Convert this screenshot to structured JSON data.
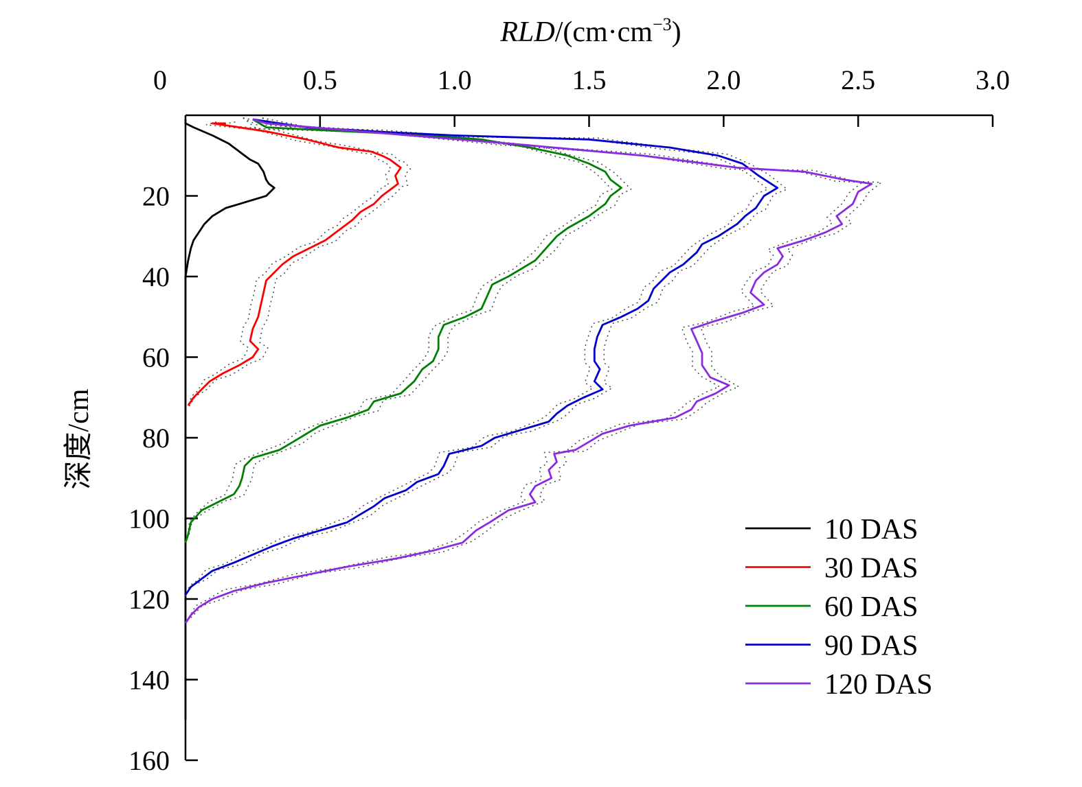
{
  "chart_data": {
    "type": "line",
    "xlabel": "RLD/(cm·cm⁻³)",
    "xlabel_parts": {
      "italic": "RLD",
      "rest": "/(cm·cm",
      "sup": "−3",
      "close": ")"
    },
    "ylabel": "深度/cm",
    "xlim": [
      0,
      3.0
    ],
    "ylim": [
      0,
      160
    ],
    "x_axis_position": "top",
    "y_axis_inverted": true,
    "grid": false,
    "legend_position": "bottom-right",
    "x_ticks": [
      0,
      0.5,
      1.0,
      1.5,
      2.0,
      2.5,
      3.0
    ],
    "x_tick_labels": [
      "0",
      "0.5",
      "1.0",
      "1.5",
      "2.0",
      "2.5",
      "3.0"
    ],
    "y_ticks": [
      20,
      40,
      60,
      80,
      100,
      120,
      140,
      160
    ],
    "y_tick_labels": [
      "20",
      "40",
      "60",
      "80",
      "100",
      "120",
      "140",
      "160"
    ],
    "series": [
      {
        "name": "10 DAS",
        "color": "#000000",
        "points": [
          [
            0.0,
            1
          ],
          [
            0.0,
            2
          ],
          [
            0.03,
            3
          ],
          [
            0.1,
            5
          ],
          [
            0.16,
            7
          ],
          [
            0.2,
            9
          ],
          [
            0.24,
            11
          ],
          [
            0.27,
            12
          ],
          [
            0.28,
            13
          ],
          [
            0.29,
            14
          ],
          [
            0.3,
            16
          ],
          [
            0.31,
            17
          ],
          [
            0.33,
            18
          ],
          [
            0.3,
            20
          ],
          [
            0.25,
            21
          ],
          [
            0.2,
            22
          ],
          [
            0.15,
            23
          ],
          [
            0.1,
            25
          ],
          [
            0.07,
            27
          ],
          [
            0.05,
            29
          ],
          [
            0.03,
            31
          ],
          [
            0.02,
            33
          ],
          [
            0.01,
            36
          ],
          [
            0.0,
            40
          ],
          [
            0.0,
            80
          ],
          [
            0.0,
            120
          ],
          [
            0.0,
            140
          ],
          [
            0.0,
            150
          ]
        ]
      },
      {
        "name": "30 DAS",
        "color": "#ff0000",
        "points": [
          [
            0.15,
            2
          ],
          [
            0.1,
            2
          ],
          [
            0.3,
            4
          ],
          [
            0.45,
            6
          ],
          [
            0.57,
            8
          ],
          [
            0.69,
            9
          ],
          [
            0.73,
            10
          ],
          [
            0.76,
            11
          ],
          [
            0.78,
            12
          ],
          [
            0.8,
            13
          ],
          [
            0.78,
            15
          ],
          [
            0.79,
            17
          ],
          [
            0.77,
            18
          ],
          [
            0.73,
            20
          ],
          [
            0.7,
            22
          ],
          [
            0.65,
            24
          ],
          [
            0.62,
            26
          ],
          [
            0.6,
            27
          ],
          [
            0.56,
            29
          ],
          [
            0.52,
            31
          ],
          [
            0.46,
            33
          ],
          [
            0.4,
            35
          ],
          [
            0.36,
            37
          ],
          [
            0.33,
            39
          ],
          [
            0.3,
            41
          ],
          [
            0.29,
            44
          ],
          [
            0.28,
            47
          ],
          [
            0.27,
            50
          ],
          [
            0.25,
            53
          ],
          [
            0.24,
            56
          ],
          [
            0.27,
            58
          ],
          [
            0.25,
            60
          ],
          [
            0.2,
            62
          ],
          [
            0.14,
            64
          ],
          [
            0.09,
            66
          ],
          [
            0.06,
            68
          ],
          [
            0.03,
            70
          ],
          [
            0.01,
            72
          ]
        ]
      },
      {
        "name": "60 DAS",
        "color": "#008000",
        "points": [
          [
            0.25,
            1
          ],
          [
            0.3,
            3
          ],
          [
            0.9,
            5
          ],
          [
            1.1,
            6
          ],
          [
            1.28,
            8
          ],
          [
            1.42,
            10
          ],
          [
            1.5,
            12
          ],
          [
            1.56,
            14
          ],
          [
            1.58,
            16
          ],
          [
            1.62,
            18
          ],
          [
            1.58,
            20
          ],
          [
            1.56,
            22
          ],
          [
            1.5,
            25
          ],
          [
            1.42,
            28
          ],
          [
            1.38,
            30
          ],
          [
            1.34,
            33
          ],
          [
            1.3,
            36
          ],
          [
            1.25,
            38
          ],
          [
            1.2,
            40
          ],
          [
            1.14,
            42
          ],
          [
            1.12,
            45
          ],
          [
            1.1,
            48
          ],
          [
            1.04,
            50
          ],
          [
            0.96,
            52
          ],
          [
            0.94,
            55
          ],
          [
            0.94,
            58
          ],
          [
            0.92,
            61
          ],
          [
            0.88,
            63
          ],
          [
            0.85,
            66
          ],
          [
            0.8,
            69
          ],
          [
            0.7,
            71
          ],
          [
            0.68,
            73
          ],
          [
            0.6,
            75
          ],
          [
            0.5,
            77
          ],
          [
            0.45,
            79
          ],
          [
            0.4,
            81
          ],
          [
            0.35,
            83
          ],
          [
            0.25,
            85
          ],
          [
            0.22,
            87
          ],
          [
            0.21,
            90
          ],
          [
            0.2,
            92
          ],
          [
            0.18,
            94
          ],
          [
            0.12,
            96
          ],
          [
            0.06,
            98
          ],
          [
            0.02,
            101
          ],
          [
            0.01,
            104
          ],
          [
            0.0,
            106
          ]
        ]
      },
      {
        "name": "90 DAS",
        "color": "#0000cc",
        "points": [
          [
            0.25,
            1
          ],
          [
            0.45,
            3
          ],
          [
            0.7,
            4
          ],
          [
            1.0,
            5
          ],
          [
            1.5,
            6
          ],
          [
            1.8,
            8
          ],
          [
            1.98,
            10
          ],
          [
            2.07,
            12
          ],
          [
            2.13,
            15
          ],
          [
            2.2,
            18
          ],
          [
            2.15,
            20
          ],
          [
            2.12,
            23
          ],
          [
            2.08,
            25
          ],
          [
            2.05,
            27
          ],
          [
            1.98,
            30
          ],
          [
            1.92,
            32
          ],
          [
            1.9,
            34
          ],
          [
            1.85,
            37
          ],
          [
            1.8,
            39
          ],
          [
            1.77,
            41
          ],
          [
            1.74,
            43
          ],
          [
            1.72,
            46
          ],
          [
            1.68,
            48
          ],
          [
            1.62,
            50
          ],
          [
            1.55,
            52
          ],
          [
            1.53,
            55
          ],
          [
            1.52,
            58
          ],
          [
            1.52,
            61
          ],
          [
            1.54,
            63
          ],
          [
            1.52,
            66
          ],
          [
            1.55,
            68
          ],
          [
            1.48,
            70
          ],
          [
            1.42,
            72
          ],
          [
            1.38,
            74
          ],
          [
            1.35,
            76
          ],
          [
            1.25,
            78
          ],
          [
            1.15,
            80
          ],
          [
            1.1,
            82
          ],
          [
            0.98,
            84
          ],
          [
            0.96,
            87
          ],
          [
            0.94,
            89
          ],
          [
            0.86,
            91
          ],
          [
            0.82,
            93
          ],
          [
            0.74,
            95
          ],
          [
            0.7,
            97
          ],
          [
            0.65,
            99
          ],
          [
            0.6,
            101
          ],
          [
            0.5,
            103
          ],
          [
            0.4,
            105
          ],
          [
            0.32,
            107
          ],
          [
            0.25,
            109
          ],
          [
            0.18,
            111
          ],
          [
            0.1,
            113
          ],
          [
            0.06,
            115
          ],
          [
            0.02,
            117
          ],
          [
            0.0,
            119
          ]
        ]
      },
      {
        "name": "120 DAS",
        "color": "#8a2be2",
        "points": [
          [
            0.25,
            1
          ],
          [
            0.3,
            2
          ],
          [
            0.65,
            4
          ],
          [
            1.2,
            7
          ],
          [
            1.7,
            10
          ],
          [
            2.05,
            13
          ],
          [
            2.3,
            14
          ],
          [
            2.45,
            16
          ],
          [
            2.55,
            17
          ],
          [
            2.5,
            19
          ],
          [
            2.48,
            22
          ],
          [
            2.42,
            25
          ],
          [
            2.44,
            27
          ],
          [
            2.38,
            29
          ],
          [
            2.3,
            31
          ],
          [
            2.2,
            33
          ],
          [
            2.22,
            35
          ],
          [
            2.2,
            37
          ],
          [
            2.15,
            39
          ],
          [
            2.12,
            41
          ],
          [
            2.1,
            44
          ],
          [
            2.15,
            47
          ],
          [
            2.07,
            49
          ],
          [
            1.97,
            51
          ],
          [
            1.88,
            53
          ],
          [
            1.9,
            56
          ],
          [
            1.92,
            59
          ],
          [
            1.92,
            62
          ],
          [
            1.95,
            65
          ],
          [
            2.02,
            67
          ],
          [
            1.97,
            69
          ],
          [
            1.9,
            71
          ],
          [
            1.88,
            73
          ],
          [
            1.82,
            75
          ],
          [
            1.65,
            77
          ],
          [
            1.55,
            79
          ],
          [
            1.5,
            81
          ],
          [
            1.45,
            83
          ],
          [
            1.37,
            84
          ],
          [
            1.38,
            86
          ],
          [
            1.35,
            88
          ],
          [
            1.36,
            90
          ],
          [
            1.3,
            92
          ],
          [
            1.28,
            94
          ],
          [
            1.3,
            96
          ],
          [
            1.2,
            98
          ],
          [
            1.13,
            101
          ],
          [
            1.08,
            103
          ],
          [
            1.03,
            106
          ],
          [
            0.92,
            108
          ],
          [
            0.78,
            110
          ],
          [
            0.6,
            112
          ],
          [
            0.45,
            114
          ],
          [
            0.3,
            116
          ],
          [
            0.18,
            118
          ],
          [
            0.1,
            120
          ],
          [
            0.05,
            122
          ],
          [
            0.02,
            124
          ],
          [
            0.0,
            126
          ]
        ]
      }
    ]
  }
}
